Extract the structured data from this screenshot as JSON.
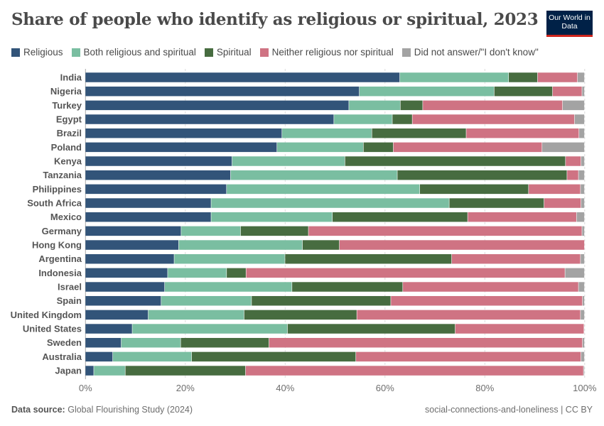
{
  "header": {
    "title": "Share of people who identify as religious or spiritual, 2023",
    "logo_text": "Our World in Data"
  },
  "footer": {
    "source_label": "Data source:",
    "source": "Global Flourishing Study (2024)",
    "right": "social-connections-and-loneliness | CC BY"
  },
  "chart_data": {
    "type": "bar",
    "orientation": "horizontal",
    "stacked": true,
    "title": "Share of people who identify as religious or spiritual, 2023",
    "legend_position": "top",
    "xlim": [
      0,
      100
    ],
    "xticks": [
      "0%",
      "20%",
      "40%",
      "60%",
      "80%",
      "100%"
    ],
    "grid": true,
    "categories": [
      "India",
      "Nigeria",
      "Turkey",
      "Egypt",
      "Brazil",
      "Poland",
      "Kenya",
      "Tanzania",
      "Philippines",
      "South Africa",
      "Mexico",
      "Germany",
      "Hong Kong",
      "Argentina",
      "Indonesia",
      "Israel",
      "Spain",
      "United Kingdom",
      "United States",
      "Sweden",
      "Australia",
      "Japan"
    ],
    "series": [
      {
        "name": "Religious",
        "color": "#325479",
        "values": [
          63.0,
          54.9,
          52.8,
          49.8,
          39.4,
          38.4,
          29.4,
          29.1,
          28.3,
          25.2,
          25.2,
          19.2,
          18.7,
          17.8,
          16.5,
          15.9,
          15.2,
          12.6,
          9.4,
          7.2,
          5.5,
          1.7
        ]
      },
      {
        "name": "Both religious and spiritual",
        "color": "#7abea1",
        "values": [
          21.8,
          27.0,
          10.3,
          11.7,
          18.0,
          17.3,
          22.6,
          33.4,
          38.7,
          47.7,
          24.3,
          11.9,
          24.8,
          22.2,
          11.8,
          25.5,
          18.1,
          19.2,
          31.1,
          11.9,
          15.8,
          6.3
        ]
      },
      {
        "name": "Spiritual",
        "color": "#476c40",
        "values": [
          5.8,
          11.7,
          4.5,
          4.0,
          18.9,
          6.0,
          44.2,
          34.0,
          21.8,
          19.0,
          27.1,
          13.6,
          7.4,
          33.4,
          3.9,
          22.2,
          27.9,
          22.6,
          33.6,
          17.7,
          32.9,
          24.1
        ]
      },
      {
        "name": "Neither religious nor spiritual",
        "color": "#cf7383",
        "values": [
          8.0,
          5.9,
          28.0,
          32.5,
          22.6,
          29.8,
          3.1,
          2.3,
          10.4,
          7.4,
          21.8,
          54.8,
          49.1,
          25.8,
          63.9,
          35.2,
          38.4,
          44.8,
          25.8,
          62.8,
          45.1,
          67.7
        ]
      },
      {
        "name": "Did not answer/\"I don't know\"",
        "color": "#a3a3a3",
        "values": [
          1.4,
          0.5,
          4.4,
          2.0,
          1.1,
          8.5,
          0.7,
          1.2,
          0.8,
          0.7,
          1.6,
          0.5,
          0,
          0.8,
          3.9,
          1.2,
          0.4,
          0.8,
          0.1,
          0.4,
          0.7,
          0.2
        ]
      }
    ]
  }
}
